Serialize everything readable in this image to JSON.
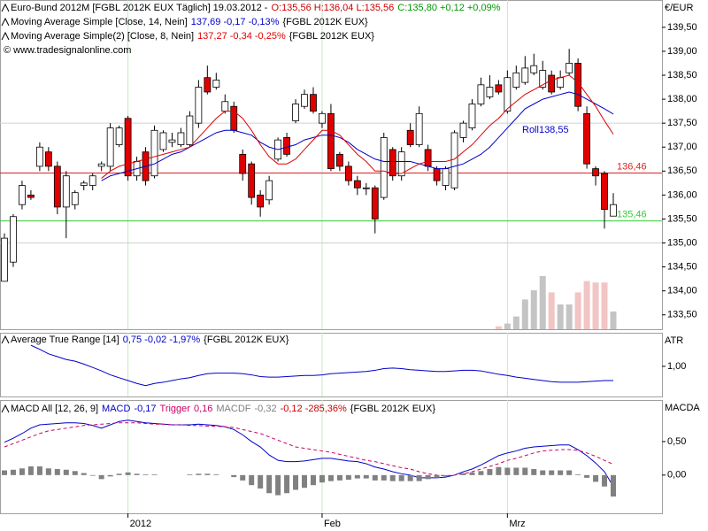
{
  "chart_data": [
    {
      "type": "candlestick",
      "title": "Euro-Bund 2012M [FGBL 2012K EUX  Täglich] 19.03.2012 -",
      "ohl": "O:135,56 H:136,04 L:135,56",
      "ohl_color": "#cc0000",
      "close_readout": "C:135,80 +0,12 +0,09%",
      "close_color": "#009900",
      "credit": "© www.tradesignalonline.com",
      "axis_label": "€/EUR",
      "annotation": "Roll138,55",
      "categories": [
        null,
        null,
        null,
        null,
        null,
        null,
        null,
        null,
        null,
        null,
        null,
        null,
        null,
        null,
        "2012",
        null,
        null,
        null,
        null,
        null,
        null,
        null,
        null,
        null,
        null,
        null,
        null,
        null,
        null,
        null,
        null,
        null,
        null,
        null,
        null,
        null,
        "Feb",
        null,
        null,
        null,
        null,
        null,
        null,
        null,
        null,
        null,
        null,
        null,
        null,
        null,
        null,
        null,
        null,
        null,
        null,
        null,
        null,
        "Mrz",
        null,
        null,
        null,
        null,
        null,
        null,
        null,
        null,
        null,
        null,
        null,
        null
      ],
      "open": [
        134.2,
        134.6,
        135.8,
        136.0,
        136.6,
        136.9,
        136.6,
        135.75,
        135.8,
        136.2,
        136.2,
        136.6,
        136.6,
        137.05,
        137.6,
        136.4,
        136.9,
        136.4,
        136.95,
        137.1,
        137.05,
        137.05,
        137.5,
        138.45,
        138.25,
        137.75,
        137.85,
        136.85,
        136.65,
        136.0,
        135.9,
        136.75,
        137.2,
        137.55,
        137.85,
        138.1,
        137.5,
        137.7,
        136.85,
        136.6,
        136.3,
        136.15,
        136.15,
        135.95,
        136.95,
        136.4,
        137.35,
        137.05,
        136.95,
        136.55,
        136.2,
        136.15,
        137.2,
        137.4,
        137.9,
        138.05,
        138.3,
        137.75,
        138.25,
        138.35,
        138.55,
        138.25,
        138.5,
        138.25,
        138.55,
        138.75,
        137.7,
        136.55,
        136.45,
        135.56
      ],
      "high": [
        135.2,
        135.6,
        136.3,
        136.1,
        137.1,
        137.0,
        136.7,
        136.5,
        136.1,
        136.3,
        136.45,
        136.7,
        137.5,
        137.45,
        137.65,
        136.8,
        137.0,
        137.45,
        137.35,
        137.3,
        137.4,
        137.75,
        138.4,
        138.7,
        138.55,
        138.1,
        137.95,
        136.95,
        136.7,
        136.1,
        136.4,
        137.2,
        137.3,
        138.0,
        138.2,
        138.25,
        137.75,
        137.9,
        136.9,
        136.7,
        136.4,
        136.25,
        136.2,
        137.3,
        137.0,
        137.0,
        137.5,
        137.85,
        137.05,
        136.6,
        136.6,
        137.35,
        137.55,
        138.0,
        138.45,
        138.5,
        138.4,
        138.6,
        138.7,
        138.9,
        138.95,
        138.8,
        138.6,
        138.6,
        139.05,
        138.85,
        137.85,
        136.6,
        136.5,
        136.04
      ],
      "low": [
        134.2,
        134.5,
        135.7,
        135.9,
        136.5,
        136.5,
        135.6,
        135.1,
        135.7,
        136.1,
        136.1,
        136.5,
        136.5,
        137.0,
        136.3,
        136.3,
        136.2,
        136.35,
        136.9,
        137.0,
        137.0,
        137.0,
        137.4,
        138.1,
        138.2,
        137.7,
        137.3,
        136.3,
        135.8,
        135.55,
        135.8,
        136.7,
        136.8,
        137.5,
        137.8,
        137.7,
        137.4,
        136.5,
        136.5,
        136.2,
        136.0,
        136.0,
        135.2,
        135.9,
        136.3,
        136.3,
        137.0,
        137.0,
        136.5,
        136.2,
        136.1,
        136.1,
        137.1,
        137.35,
        137.85,
        138.0,
        138.1,
        137.7,
        138.2,
        138.3,
        138.5,
        138.2,
        138.1,
        138.2,
        138.5,
        137.75,
        136.55,
        136.2,
        135.3,
        135.56
      ],
      "close": [
        135.1,
        135.55,
        136.2,
        135.95,
        137.0,
        136.6,
        135.75,
        136.4,
        136.05,
        136.25,
        136.4,
        136.65,
        137.4,
        137.4,
        136.4,
        136.7,
        136.3,
        137.35,
        137.3,
        137.15,
        137.3,
        137.65,
        138.25,
        138.15,
        138.4,
        137.95,
        137.35,
        136.45,
        135.95,
        135.75,
        136.3,
        137.15,
        136.85,
        137.9,
        138.1,
        137.75,
        137.7,
        136.55,
        136.6,
        136.3,
        136.15,
        136.15,
        135.5,
        137.2,
        136.4,
        136.9,
        137.05,
        137.7,
        136.6,
        136.3,
        136.55,
        137.3,
        137.5,
        137.9,
        138.3,
        138.25,
        138.15,
        138.45,
        138.55,
        138.65,
        138.7,
        138.6,
        138.15,
        138.45,
        138.75,
        137.85,
        136.65,
        136.4,
        135.7,
        135.8
      ],
      "up_color": "#ffffff",
      "down_color": "#e00000",
      "volume": [
        null,
        null,
        null,
        null,
        null,
        null,
        null,
        null,
        null,
        null,
        null,
        null,
        null,
        null,
        null,
        null,
        null,
        null,
        null,
        null,
        null,
        null,
        null,
        null,
        null,
        null,
        null,
        null,
        null,
        null,
        null,
        null,
        null,
        null,
        null,
        null,
        null,
        null,
        null,
        null,
        null,
        null,
        null,
        null,
        null,
        null,
        null,
        null,
        null,
        null,
        null,
        null,
        null,
        null,
        null,
        null,
        4,
        8,
        18,
        42,
        55,
        75,
        52,
        35,
        35,
        52,
        68,
        66,
        66,
        25
      ],
      "volume_ylim": [
        0,
        100
      ],
      "volume_up_color": "#c4c4c4",
      "volume_down_color": "#f2c4c4",
      "series": [
        {
          "name": "Moving Average Simple [Close, 14, Nein]",
          "readout": "137,69 -0,17 -0,13%",
          "source": "{FGBL 2012K EUX}",
          "color": "#0000cc",
          "values": [
            null,
            null,
            null,
            null,
            null,
            null,
            null,
            null,
            null,
            null,
            null,
            136.3,
            136.4,
            136.45,
            136.5,
            136.55,
            136.6,
            136.65,
            136.75,
            136.85,
            136.9,
            137.0,
            137.1,
            137.2,
            137.3,
            137.35,
            137.35,
            137.3,
            137.25,
            137.1,
            137.0,
            136.95,
            137.0,
            137.05,
            137.15,
            137.2,
            137.25,
            137.25,
            137.2,
            137.1,
            136.95,
            136.85,
            136.75,
            136.7,
            136.7,
            136.7,
            136.7,
            136.65,
            136.6,
            136.55,
            136.55,
            136.6,
            136.65,
            136.75,
            136.85,
            137.0,
            137.2,
            137.4,
            137.6,
            137.8,
            137.9,
            138.0,
            138.05,
            138.1,
            138.15,
            138.1,
            138.0,
            137.9,
            137.8,
            137.69
          ]
        },
        {
          "name": "Moving Average Simple(2) [Close, 8, Nein]",
          "readout": "137,27 -0,34 -0,25%",
          "source": "{FGBL 2012K EUX}",
          "color": "#dd0000",
          "values": [
            null,
            null,
            null,
            null,
            null,
            null,
            null,
            null,
            null,
            null,
            null,
            136.35,
            136.5,
            136.6,
            136.65,
            136.7,
            136.75,
            136.8,
            136.85,
            136.9,
            136.95,
            137.0,
            137.2,
            137.4,
            137.6,
            137.75,
            137.75,
            137.6,
            137.35,
            137.05,
            136.8,
            136.65,
            136.65,
            136.75,
            136.95,
            137.15,
            137.35,
            137.35,
            137.25,
            137.05,
            136.85,
            136.7,
            136.5,
            136.5,
            136.45,
            136.45,
            136.55,
            136.65,
            136.7,
            136.7,
            136.7,
            136.75,
            136.9,
            137.05,
            137.25,
            137.45,
            137.6,
            137.8,
            137.95,
            138.1,
            138.2,
            138.3,
            138.4,
            138.45,
            138.5,
            138.35,
            138.1,
            137.85,
            137.55,
            137.27
          ]
        }
      ],
      "price_lines": [
        {
          "value": 136.46,
          "label": "136,46",
          "color": "#dd2222"
        },
        {
          "value": 135.46,
          "label": "135,46",
          "color": "#33cc33"
        }
      ],
      "ylim": [
        133.2,
        140.07
      ],
      "yticks": [
        {
          "value": 133.5,
          "label": "133,50"
        },
        {
          "value": 134,
          "label": "134,00"
        },
        {
          "value": 134.5,
          "label": "134,50"
        },
        {
          "value": 135,
          "label": "135,00"
        },
        {
          "value": 135.5,
          "label": "135,50"
        },
        {
          "value": 136,
          "label": "136,00"
        },
        {
          "value": 136.5,
          "label": "136,50"
        },
        {
          "value": 137,
          "label": "137,00"
        },
        {
          "value": 137.5,
          "label": "137,50"
        },
        {
          "value": 138,
          "label": "138,00"
        },
        {
          "value": 138.5,
          "label": "138,50"
        },
        {
          "value": 139,
          "label": "139,00"
        },
        {
          "value": 139.5,
          "label": "139,50"
        }
      ],
      "grid_lines": [
        135,
        137.5
      ]
    },
    {
      "type": "line",
      "axis_label": "ATR",
      "series": [
        {
          "name": "Average True Range [14]",
          "readout": "0,75 -0,02 -1,97%",
          "source": "{FGBL 2012K EUX}",
          "color": "#0000cc",
          "values": [
            null,
            null,
            null,
            1.37,
            1.3,
            1.22,
            1.17,
            1.12,
            1.09,
            1.04,
            0.98,
            0.92,
            0.85,
            0.8,
            0.75,
            0.7,
            0.66,
            0.7,
            0.72,
            0.75,
            0.78,
            0.8,
            0.84,
            0.87,
            0.88,
            0.88,
            0.88,
            0.87,
            0.85,
            0.82,
            0.81,
            0.81,
            0.82,
            0.83,
            0.84,
            0.84,
            0.85,
            0.87,
            0.88,
            0.89,
            0.9,
            0.91,
            0.93,
            0.96,
            0.97,
            0.96,
            0.94,
            0.93,
            0.92,
            0.91,
            0.91,
            0.92,
            0.93,
            0.93,
            0.92,
            0.89,
            0.86,
            0.84,
            0.81,
            0.79,
            0.77,
            0.75,
            0.73,
            0.72,
            0.72,
            0.72,
            0.73,
            0.74,
            0.75,
            0.75
          ]
        }
      ],
      "ylim": [
        0.47,
        1.59
      ],
      "yticks": [
        {
          "value": 1,
          "label": "1,00"
        }
      ]
    },
    {
      "type": "line",
      "axis_label": "MACDA",
      "title": "MACD All [12, 26, 9]",
      "change_readout": "-0,12 -285,36%",
      "change_color": "#cc0000",
      "source": "{FGBL 2012K EUX}",
      "series": [
        {
          "name": "MACD",
          "readout": "-0,17",
          "color": "#0000cc",
          "kind": "line",
          "values": [
            0.49,
            0.55,
            0.62,
            0.7,
            0.75,
            0.76,
            0.77,
            0.78,
            0.78,
            0.77,
            0.74,
            0.7,
            0.75,
            0.8,
            0.82,
            0.8,
            0.78,
            0.77,
            0.76,
            0.75,
            0.75,
            0.75,
            0.76,
            0.75,
            0.74,
            0.72,
            0.68,
            0.6,
            0.5,
            0.42,
            0.3,
            0.22,
            0.2,
            0.2,
            0.21,
            0.23,
            0.25,
            0.25,
            0.23,
            0.21,
            0.2,
            0.17,
            0.12,
            0.09,
            0.05,
            0.02,
            0.0,
            -0.04,
            -0.04,
            -0.04,
            -0.03,
            0.0,
            0.05,
            0.09,
            0.15,
            0.22,
            0.29,
            0.33,
            0.36,
            0.4,
            0.42,
            0.43,
            0.44,
            0.45,
            0.45,
            0.38,
            0.29,
            0.18,
            0.05,
            -0.17
          ]
        },
        {
          "name": "Trigger",
          "readout": "0,16",
          "color": "#cc0066",
          "kind": "dashed",
          "values": [
            0.42,
            0.47,
            0.52,
            0.57,
            0.62,
            0.66,
            0.68,
            0.7,
            0.72,
            0.74,
            0.75,
            0.76,
            0.77,
            0.78,
            0.78,
            0.78,
            0.77,
            0.76,
            0.76,
            0.75,
            0.75,
            0.74,
            0.74,
            0.73,
            0.73,
            0.72,
            0.71,
            0.68,
            0.65,
            0.62,
            0.57,
            0.52,
            0.47,
            0.42,
            0.4,
            0.38,
            0.36,
            0.34,
            0.31,
            0.28,
            0.25,
            0.22,
            0.2,
            0.17,
            0.14,
            0.11,
            0.09,
            0.05,
            0.02,
            0.0,
            -0.01,
            0.0,
            0.02,
            0.05,
            0.09,
            0.13,
            0.17,
            0.22,
            0.25,
            0.29,
            0.33,
            0.36,
            0.37,
            0.38,
            0.38,
            0.37,
            0.33,
            0.28,
            0.22,
            0.16
          ]
        },
        {
          "name": "MACDF",
          "readout": "-0,32",
          "color": "#808080",
          "kind": "bar",
          "values": [
            0.07,
            0.08,
            0.1,
            0.13,
            0.13,
            0.1,
            0.09,
            0.08,
            0.06,
            0.03,
            -0.01,
            -0.06,
            -0.02,
            0.02,
            0.04,
            0.02,
            0.01,
            0.01,
            0.0,
            0.0,
            0.0,
            0.01,
            0.02,
            0.02,
            0.01,
            0.0,
            -0.03,
            -0.08,
            -0.15,
            -0.2,
            -0.27,
            -0.3,
            -0.27,
            -0.22,
            -0.19,
            -0.15,
            -0.11,
            -0.09,
            -0.08,
            -0.07,
            -0.05,
            -0.05,
            -0.08,
            -0.08,
            -0.09,
            -0.09,
            -0.09,
            -0.09,
            -0.06,
            -0.04,
            -0.02,
            0.0,
            0.03,
            0.04,
            0.06,
            0.09,
            0.12,
            0.11,
            0.11,
            0.11,
            0.09,
            0.07,
            0.07,
            0.07,
            0.07,
            0.01,
            -0.04,
            -0.1,
            -0.17,
            -0.32
          ]
        }
      ],
      "ylim": [
        -0.57,
        1.12
      ],
      "yticks": [
        {
          "value": 0.5,
          "label": "0,50"
        },
        {
          "value": 0,
          "label": "0,00"
        }
      ]
    }
  ]
}
